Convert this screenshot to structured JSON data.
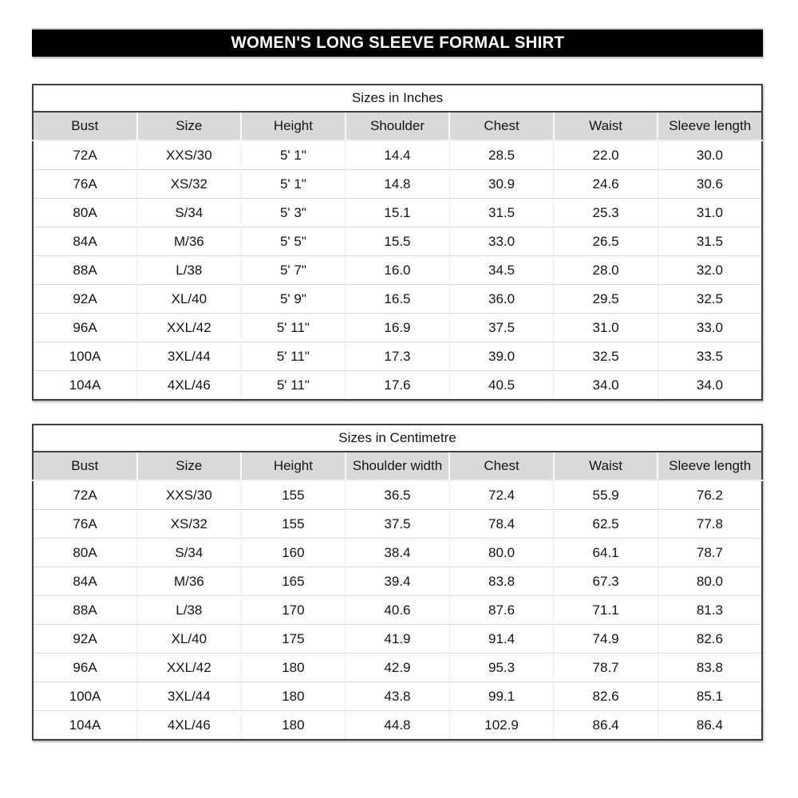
{
  "title": "WOMEN'S LONG SLEEVE FORMAL SHIRT",
  "colors": {
    "banner_bg": "#000000",
    "banner_text": "#ffffff",
    "header_row_bg": "#d9d9d9",
    "table_border": "#3f3f3f",
    "gridline": "#d9d9d9",
    "text": "#141414"
  },
  "tables": [
    {
      "caption": "Sizes in Inches",
      "headers": [
        "Bust",
        "Size",
        "Height",
        "Shoulder",
        "Chest",
        "Waist",
        "Sleeve length"
      ],
      "rows": [
        [
          "72A",
          "XXS/30",
          "5' 1\"",
          "14.4",
          "28.5",
          "22.0",
          "30.0"
        ],
        [
          "76A",
          "XS/32",
          "5' 1\"",
          "14.8",
          "30.9",
          "24.6",
          "30.6"
        ],
        [
          "80A",
          "S/34",
          "5' 3\"",
          "15.1",
          "31.5",
          "25.3",
          "31.0"
        ],
        [
          "84A",
          "M/36",
          "5' 5\"",
          "15.5",
          "33.0",
          "26.5",
          "31.5"
        ],
        [
          "88A",
          "L/38",
          "5' 7\"",
          "16.0",
          "34.5",
          "28.0",
          "32.0"
        ],
        [
          "92A",
          "XL/40",
          "5' 9\"",
          "16.5",
          "36.0",
          "29.5",
          "32.5"
        ],
        [
          "96A",
          "XXL/42",
          "5' 11\"",
          "16.9",
          "37.5",
          "31.0",
          "33.0"
        ],
        [
          "100A",
          "3XL/44",
          "5' 11\"",
          "17.3",
          "39.0",
          "32.5",
          "33.5"
        ],
        [
          "104A",
          "4XL/46",
          "5' 11\"",
          "17.6",
          "40.5",
          "34.0",
          "34.0"
        ]
      ]
    },
    {
      "caption": "Sizes in Centimetre",
      "headers": [
        "Bust",
        "Size",
        "Height",
        "Shoulder width",
        "Chest",
        "Waist",
        "Sleeve length"
      ],
      "rows": [
        [
          "72A",
          "XXS/30",
          "155",
          "36.5",
          "72.4",
          "55.9",
          "76.2"
        ],
        [
          "76A",
          "XS/32",
          "155",
          "37.5",
          "78.4",
          "62.5",
          "77.8"
        ],
        [
          "80A",
          "S/34",
          "160",
          "38.4",
          "80.0",
          "64.1",
          "78.7"
        ],
        [
          "84A",
          "M/36",
          "165",
          "39.4",
          "83.8",
          "67.3",
          "80.0"
        ],
        [
          "88A",
          "L/38",
          "170",
          "40.6",
          "87.6",
          "71.1",
          "81.3"
        ],
        [
          "92A",
          "XL/40",
          "175",
          "41.9",
          "91.4",
          "74.9",
          "82.6"
        ],
        [
          "96A",
          "XXL/42",
          "180",
          "42.9",
          "95.3",
          "78.7",
          "83.8"
        ],
        [
          "100A",
          "3XL/44",
          "180",
          "43.8",
          "99.1",
          "82.6",
          "85.1"
        ],
        [
          "104A",
          "4XL/46",
          "180",
          "44.8",
          "102.9",
          "86.4",
          "86.4"
        ]
      ]
    }
  ]
}
